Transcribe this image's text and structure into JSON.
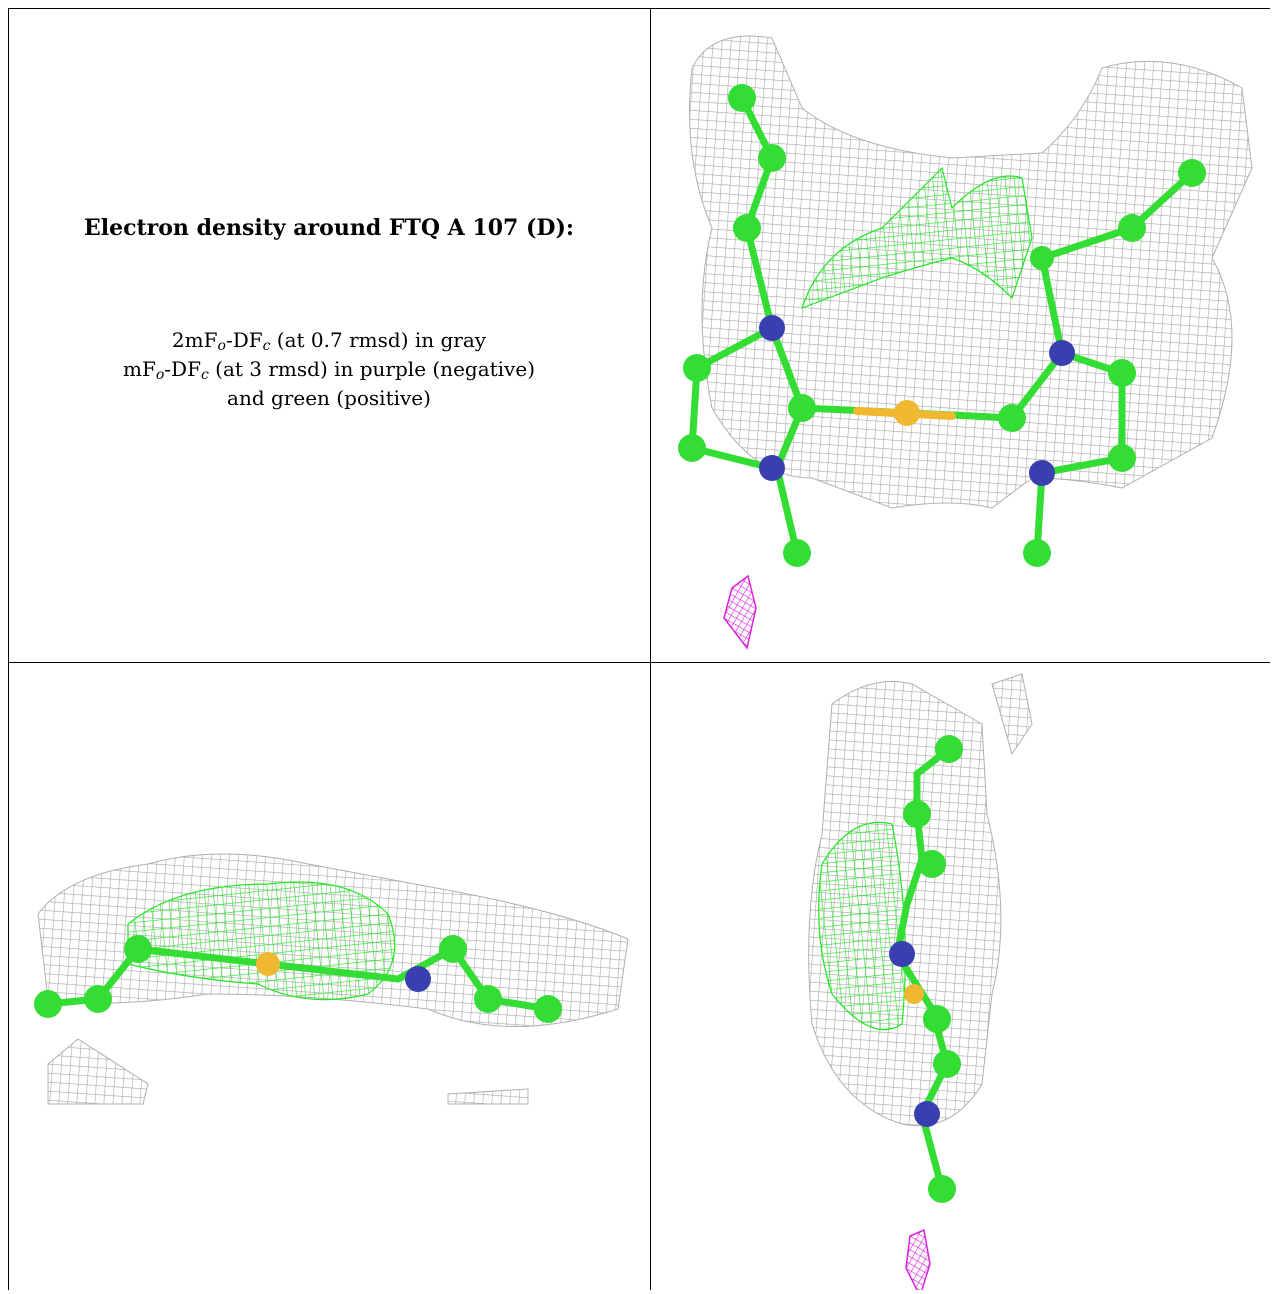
{
  "caption": {
    "title": "Electron density around FTQ A 107 (D):",
    "line1": {
      "a": "2mF",
      "sub1": "o",
      "b": "-DF",
      "sub2": "c",
      "c": " (at 0.7 rmsd) in gray"
    },
    "line2": {
      "a": "mF",
      "sub1": "o",
      "b": "-DF",
      "sub2": "c",
      "c": " (at 3 rmsd) in purple (negative)"
    },
    "line3": "and green (positive)"
  },
  "colors": {
    "mesh_gray": "#a8a8a8",
    "mesh_green": "#22e622",
    "mesh_purple": "#dd22dd",
    "carbon": "#33dd33",
    "nitrogen": "#3a3fb0",
    "iron": "#f0b830"
  },
  "panels": [
    {
      "view": "top-front"
    },
    {
      "view": "side"
    },
    {
      "view": "end-on"
    }
  ]
}
